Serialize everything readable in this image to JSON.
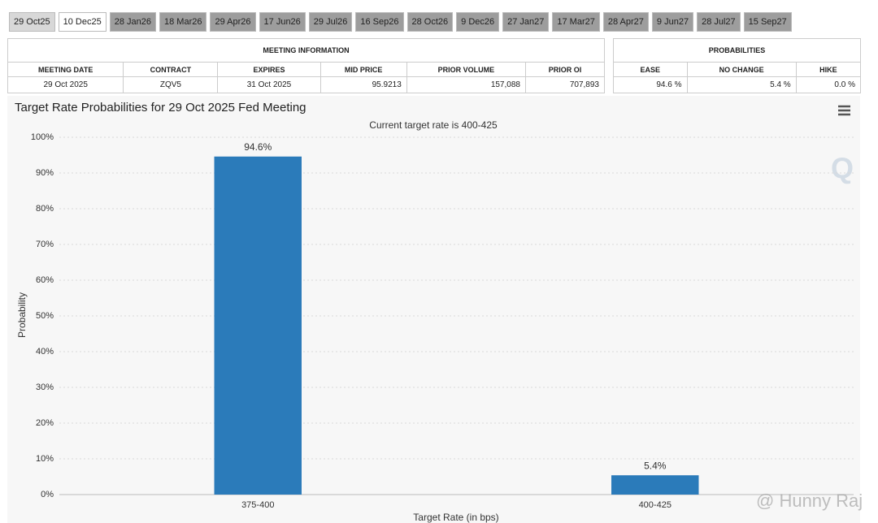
{
  "tabs": [
    "29 Oct25",
    "10 Dec25",
    "28 Jan26",
    "18 Mar26",
    "29 Apr26",
    "17 Jun26",
    "29 Jul26",
    "16 Sep26",
    "28 Oct26",
    "9 Dec26",
    "27 Jan27",
    "17 Mar27",
    "28 Apr27",
    "9 Jun27",
    "28 Jul27",
    "15 Sep27"
  ],
  "meeting_info": {
    "title": "MEETING INFORMATION",
    "columns": [
      "MEETING DATE",
      "CONTRACT",
      "EXPIRES",
      "MID PRICE",
      "PRIOR VOLUME",
      "PRIOR OI"
    ],
    "row": [
      "29 Oct 2025",
      "ZQV5",
      "31 Oct 2025",
      "95.9213",
      "157,088",
      "707,893"
    ]
  },
  "probabilities": {
    "title": "PROBABILITIES",
    "columns": [
      "EASE",
      "NO CHANGE",
      "HIKE"
    ],
    "row": [
      "94.6 %",
      "5.4 %",
      "0.0 %"
    ]
  },
  "chart_data": {
    "type": "bar",
    "title": "Target Rate Probabilities for 29 Oct 2025 Fed Meeting",
    "subtitle": "Current target rate is 400-425",
    "x_label": "Target Rate (in bps)",
    "y_label": "Probability",
    "categories": [
      "375-400",
      "400-425"
    ],
    "values": [
      94.6,
      5.4
    ],
    "value_labels": [
      "94.6%",
      "5.4%"
    ],
    "color": "#2b7bba",
    "ylim": [
      0,
      100
    ],
    "yticks": [
      {
        "value": 0,
        "label": "0%"
      },
      {
        "value": 10,
        "label": "10%"
      },
      {
        "value": 20,
        "label": "20%"
      },
      {
        "value": 30,
        "label": "30%"
      },
      {
        "value": 40,
        "label": "40%"
      },
      {
        "value": 50,
        "label": "50%"
      },
      {
        "value": 60,
        "label": "60%"
      },
      {
        "value": 70,
        "label": "70%"
      },
      {
        "value": 80,
        "label": "80%"
      },
      {
        "value": 90,
        "label": "90%"
      },
      {
        "value": 100,
        "label": "100%"
      }
    ],
    "grid": true
  },
  "watermark": "@ Hunny Raj"
}
